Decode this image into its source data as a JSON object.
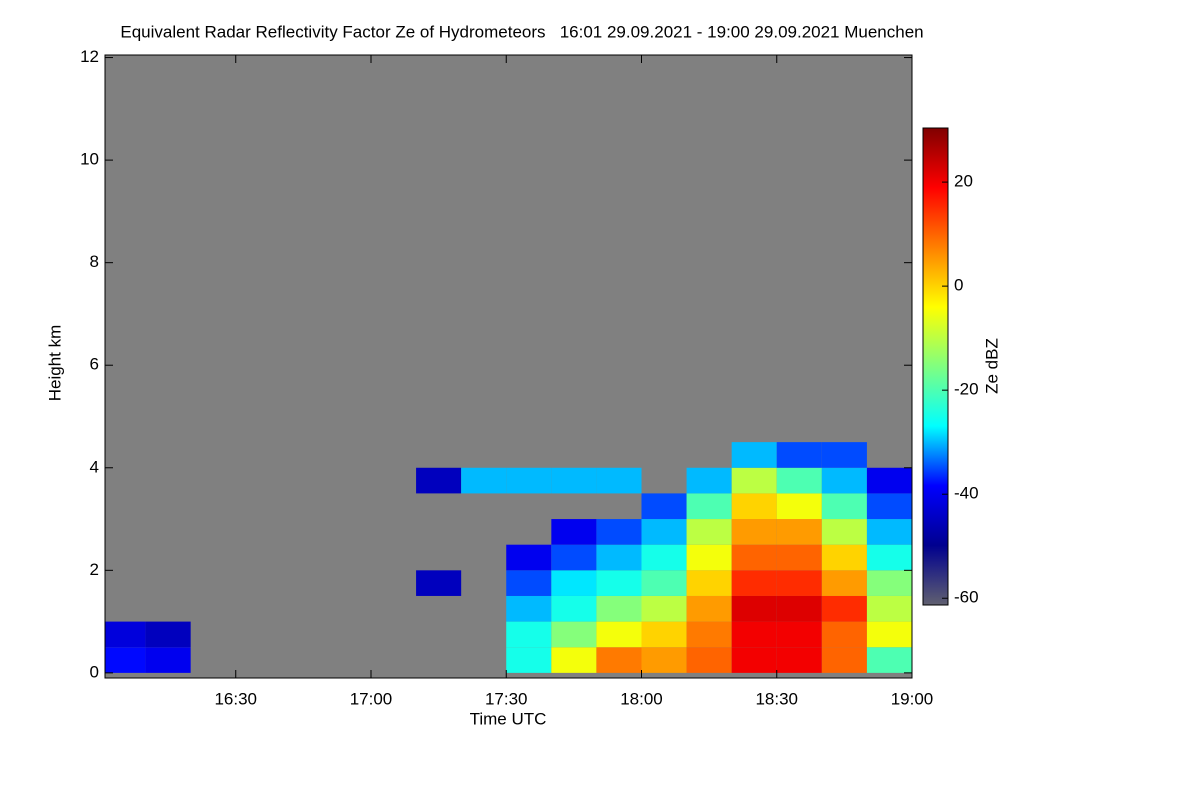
{
  "chart_data": {
    "type": "heatmap",
    "title": "Equivalent Radar Reflectivity Factor Ze of Hydrometeors   16:01 29.09.2021 - 19:00 29.09.2021 Muenchen",
    "x_label": "Time UTC",
    "y_label": "Height km",
    "colorbar_label": "Ze dBZ",
    "xlim": [
      16.01667,
      19.0
    ],
    "xticks": [
      {
        "value": 16.5,
        "label": "16:30"
      },
      {
        "value": 17.0,
        "label": "17:00"
      },
      {
        "value": 17.5,
        "label": "17:30"
      },
      {
        "value": 18.0,
        "label": "18:00"
      },
      {
        "value": 18.5,
        "label": "18:30"
      },
      {
        "value": 19.0,
        "label": "19:00"
      }
    ],
    "ylim": [
      -0.1,
      12.05
    ],
    "yticks": [
      0,
      2,
      4,
      6,
      8,
      10,
      12
    ],
    "zlim": [
      -61.3,
      30.4
    ],
    "zticks": [
      -60,
      -40,
      -20,
      0,
      20
    ],
    "colorscale": [
      "#606070",
      "#00008f",
      "#0000ff",
      "#00ffff",
      "#80ff80",
      "#ffff00",
      "#ff8000",
      "#ff0000",
      "#800000"
    ],
    "x": [
      16.0833,
      16.25,
      16.4167,
      16.5833,
      16.75,
      16.9167,
      17.0833,
      17.25,
      17.4167,
      17.5833,
      17.75,
      17.9167,
      18.0833,
      18.25,
      18.4167,
      18.5833,
      18.75,
      18.9167
    ],
    "y": [
      0.25,
      0.75,
      1.25,
      1.75,
      2.25,
      2.75,
      3.25,
      3.75,
      4.25
    ],
    "z": [
      [
        -38,
        -42,
        null,
        null,
        null,
        null,
        null,
        null,
        null
      ],
      [
        -40,
        -45,
        null,
        null,
        null,
        null,
        null,
        null,
        null
      ],
      [
        null,
        null,
        null,
        null,
        null,
        null,
        null,
        null,
        null
      ],
      [
        null,
        null,
        null,
        null,
        null,
        null,
        null,
        null,
        null
      ],
      [
        null,
        null,
        null,
        null,
        null,
        null,
        null,
        null,
        null
      ],
      [
        null,
        null,
        null,
        null,
        null,
        null,
        null,
        null,
        null
      ],
      [
        null,
        null,
        null,
        null,
        null,
        null,
        null,
        null,
        null
      ],
      [
        null,
        null,
        null,
        -45,
        null,
        null,
        null,
        -45,
        null
      ],
      [
        null,
        null,
        null,
        null,
        null,
        null,
        null,
        -30,
        null
      ],
      [
        -25,
        -25,
        -30,
        -35,
        -40,
        null,
        null,
        -30,
        null
      ],
      [
        -5,
        -15,
        -25,
        -28,
        -35,
        -40,
        null,
        -30,
        null
      ],
      [
        8,
        -5,
        -15,
        -25,
        -30,
        -35,
        null,
        -30,
        null
      ],
      [
        5,
        0,
        -10,
        -20,
        -25,
        -30,
        -35,
        null,
        null
      ],
      [
        10,
        8,
        5,
        0,
        -5,
        -10,
        -20,
        -30,
        null
      ],
      [
        20,
        20,
        22,
        15,
        10,
        5,
        0,
        -10,
        -30
      ],
      [
        20,
        20,
        22,
        15,
        10,
        5,
        -5,
        -20,
        -35
      ],
      [
        10,
        10,
        15,
        5,
        0,
        -10,
        -20,
        -30,
        -35
      ],
      [
        -20,
        -5,
        -10,
        -15,
        -25,
        -30,
        -35,
        -40,
        null
      ]
    ]
  }
}
